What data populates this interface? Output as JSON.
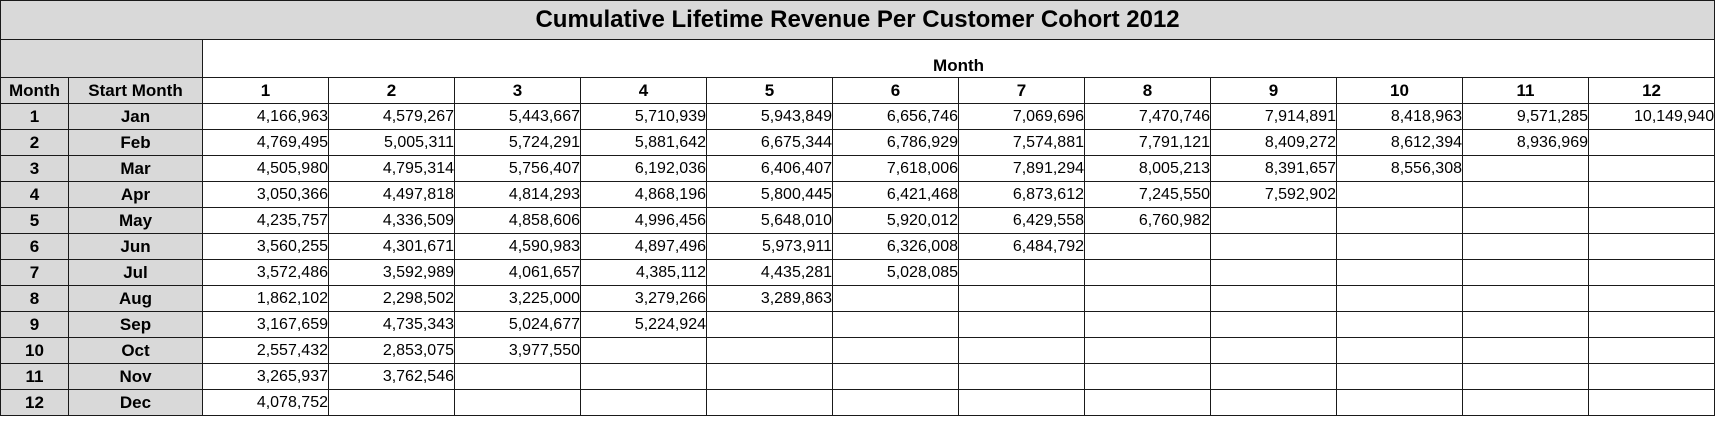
{
  "title": "Cumulative Lifetime Revenue Per Customer Cohort 2012",
  "chart_data": {
    "type": "table",
    "title": "Cumulative Lifetime Revenue Per Customer Cohort 2012",
    "column_group_label": "Month",
    "row_header_labels": [
      "Month",
      "Start Month"
    ],
    "columns": [
      "1",
      "2",
      "3",
      "4",
      "5",
      "6",
      "7",
      "8",
      "9",
      "10",
      "11",
      "12"
    ],
    "rows": [
      {
        "month": "1",
        "start_month": "Jan",
        "values": [
          "4,166,963",
          "4,579,267",
          "5,443,667",
          "5,710,939",
          "5,943,849",
          "6,656,746",
          "7,069,696",
          "7,470,746",
          "7,914,891",
          "8,418,963",
          "9,571,285",
          "10,149,940"
        ]
      },
      {
        "month": "2",
        "start_month": "Feb",
        "values": [
          "4,769,495",
          "5,005,311",
          "5,724,291",
          "5,881,642",
          "6,675,344",
          "6,786,929",
          "7,574,881",
          "7,791,121",
          "8,409,272",
          "8,612,394",
          "8,936,969",
          ""
        ]
      },
      {
        "month": "3",
        "start_month": "Mar",
        "values": [
          "4,505,980",
          "4,795,314",
          "5,756,407",
          "6,192,036",
          "6,406,407",
          "7,618,006",
          "7,891,294",
          "8,005,213",
          "8,391,657",
          "8,556,308",
          "",
          ""
        ]
      },
      {
        "month": "4",
        "start_month": "Apr",
        "values": [
          "3,050,366",
          "4,497,818",
          "4,814,293",
          "4,868,196",
          "5,800,445",
          "6,421,468",
          "6,873,612",
          "7,245,550",
          "7,592,902",
          "",
          "",
          ""
        ]
      },
      {
        "month": "5",
        "start_month": "May",
        "values": [
          "4,235,757",
          "4,336,509",
          "4,858,606",
          "4,996,456",
          "5,648,010",
          "5,920,012",
          "6,429,558",
          "6,760,982",
          "",
          "",
          "",
          ""
        ]
      },
      {
        "month": "6",
        "start_month": "Jun",
        "values": [
          "3,560,255",
          "4,301,671",
          "4,590,983",
          "4,897,496",
          "5,973,911",
          "6,326,008",
          "6,484,792",
          "",
          "",
          "",
          "",
          ""
        ]
      },
      {
        "month": "7",
        "start_month": "Jul",
        "values": [
          "3,572,486",
          "3,592,989",
          "4,061,657",
          "4,385,112",
          "4,435,281",
          "5,028,085",
          "",
          "",
          "",
          "",
          "",
          ""
        ]
      },
      {
        "month": "8",
        "start_month": "Aug",
        "values": [
          "1,862,102",
          "2,298,502",
          "3,225,000",
          "3,279,266",
          "3,289,863",
          "",
          "",
          "",
          "",
          "",
          "",
          ""
        ]
      },
      {
        "month": "9",
        "start_month": "Sep",
        "values": [
          "3,167,659",
          "4,735,343",
          "5,024,677",
          "5,224,924",
          "",
          "",
          "",
          "",
          "",
          "",
          "",
          ""
        ]
      },
      {
        "month": "10",
        "start_month": "Oct",
        "values": [
          "2,557,432",
          "2,853,075",
          "3,977,550",
          "",
          "",
          "",
          "",
          "",
          "",
          "",
          "",
          ""
        ]
      },
      {
        "month": "11",
        "start_month": "Nov",
        "values": [
          "3,265,937",
          "3,762,546",
          "",
          "",
          "",
          "",
          "",
          "",
          "",
          "",
          "",
          ""
        ]
      },
      {
        "month": "12",
        "start_month": "Dec",
        "values": [
          "4,078,752",
          "",
          "",
          "",
          "",
          "",
          "",
          "",
          "",
          "",
          "",
          ""
        ]
      }
    ]
  }
}
